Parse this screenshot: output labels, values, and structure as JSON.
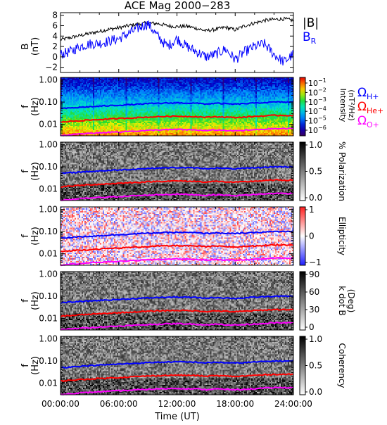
{
  "title": "ACE Mag 2000−283",
  "x_axis": {
    "label": "Time (UT)",
    "ticks": [
      "00:00:00",
      "06:00:00",
      "12:00:00",
      "18:00:00",
      "24:00:00"
    ],
    "tick_hours": [
      0,
      6,
      12,
      18,
      24
    ]
  },
  "legend": {
    "b_mag": "|B|",
    "b_r_main": "B",
    "b_r_sub": "R",
    "omega_h_sym": "Ω",
    "omega_h_sub": "H+",
    "omega_he_sym": "Ω",
    "omega_he_sub": "He+",
    "omega_o_sym": "Ω",
    "omega_o_sub": "O+"
  },
  "colors": {
    "b_mag": "#000000",
    "b_r": "#0000ff",
    "omega_h": "#0000ff",
    "omega_he": "#ff0000",
    "omega_o": "#ff00ff"
  },
  "freq_ticks": [
    "1.00",
    "0.10",
    "0.01"
  ],
  "freq_ylabel_a": "f",
  "freq_ylabel_b": "(Hz)",
  "b_panel": {
    "ylabel_a": "B",
    "ylabel_b": "(nT)",
    "yticks": [
      "8",
      "6",
      "4",
      "2",
      "0",
      "−2"
    ]
  },
  "colorbars": {
    "intensity": {
      "label_a": "Intensity",
      "label_b": "(nT²/Hz)",
      "ticks_base": [
        "10",
        "10",
        "10",
        "10",
        "10",
        "10"
      ],
      "ticks_exp": [
        "−1",
        "−2",
        "−3",
        "−4",
        "−5",
        "−6"
      ]
    },
    "polarization": {
      "label": "% Polarization",
      "ticks": [
        "1.0",
        "0.5",
        "0.0"
      ]
    },
    "ellipticity": {
      "label": "Ellipticity",
      "ticks": [
        "1",
        "0",
        "−1"
      ]
    },
    "kdotb": {
      "label_a": "k dot B",
      "label_b": "(Deg)",
      "ticks": [
        "90",
        "60",
        "30",
        "0"
      ]
    },
    "coherency": {
      "label": "Coherency",
      "ticks": [
        "1.0",
        "0.5",
        "0.0"
      ]
    }
  },
  "chart_data": [
    {
      "type": "line",
      "panel": "magnetic field",
      "ylim": [
        -3,
        8.5
      ],
      "x_unit": "hours UT",
      "series": [
        {
          "name": "|B|",
          "x": [
            0,
            1,
            2,
            3,
            4,
            5,
            6,
            7,
            8,
            9,
            10,
            11,
            12,
            13,
            14,
            15,
            16,
            17,
            18,
            19,
            20,
            21,
            22,
            23,
            24
          ],
          "y": [
            3.3,
            3.7,
            4.1,
            4.5,
            4.9,
            5.3,
            5.6,
            6.0,
            6.3,
            6.5,
            6.4,
            6.0,
            5.8,
            5.9,
            5.5,
            5.0,
            5.3,
            5.7,
            5.2,
            6.0,
            6.5,
            7.0,
            7.2,
            7.3,
            7.0
          ]
        },
        {
          "name": "B_R",
          "x": [
            0,
            1,
            2,
            3,
            4,
            5,
            6,
            7,
            8,
            9,
            10,
            11,
            12,
            13,
            14,
            15,
            16,
            17,
            18,
            19,
            20,
            21,
            22,
            23,
            24
          ],
          "y": [
            0.5,
            1.0,
            2.0,
            2.5,
            2.6,
            3.0,
            3.5,
            4.5,
            5.5,
            6.4,
            4.0,
            2.0,
            3.5,
            2.0,
            1.0,
            0.0,
            0.5,
            1.5,
            -0.5,
            1.0,
            2.0,
            2.5,
            0.5,
            -1.0,
            0.5
          ]
        }
      ]
    },
    {
      "type": "line",
      "panel": "ion gyrofrequencies (overlaid on all spectrogram panels)",
      "yscale": "log",
      "ylim": [
        0.003,
        1.3
      ],
      "x_unit": "hours UT",
      "series": [
        {
          "name": "ΩH+",
          "x": [
            0,
            2,
            4,
            6,
            8,
            10,
            12,
            14,
            15,
            16,
            18,
            20,
            22,
            24
          ],
          "y": [
            0.05,
            0.058,
            0.065,
            0.072,
            0.08,
            0.088,
            0.092,
            0.088,
            0.082,
            0.088,
            0.08,
            0.09,
            0.1,
            0.1
          ]
        },
        {
          "name": "ΩHe+",
          "x": [
            0,
            2,
            4,
            6,
            8,
            10,
            12,
            14,
            15,
            16,
            18,
            20,
            22,
            24
          ],
          "y": [
            0.0125,
            0.0145,
            0.0163,
            0.018,
            0.02,
            0.022,
            0.023,
            0.022,
            0.0205,
            0.022,
            0.02,
            0.0225,
            0.025,
            0.025
          ]
        },
        {
          "name": "ΩO+",
          "x": [
            0,
            2,
            4,
            6,
            8,
            10,
            12,
            14,
            15,
            16,
            18,
            20,
            22,
            24
          ],
          "y": [
            0.0031,
            0.0036,
            0.0041,
            0.0045,
            0.005,
            0.0055,
            0.0058,
            0.0055,
            0.0051,
            0.0055,
            0.005,
            0.0056,
            0.0063,
            0.0063
          ]
        }
      ]
    }
  ]
}
